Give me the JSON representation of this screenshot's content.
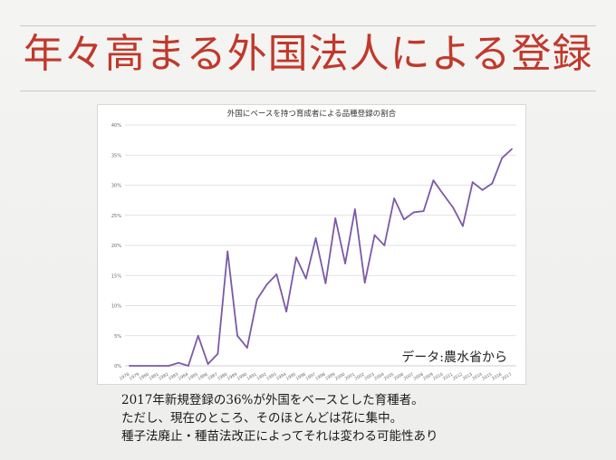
{
  "slide": {
    "title": "年々高まる外国法人による登録",
    "source": "データ:農水省から",
    "notes": [
      "2017年新規登録の36%が外国をベースとした育種者。",
      "ただし、現在のところ、そのほとんどは花に集中。",
      "種子法廃止・種苗法改正によってそれは変わる可能性あり"
    ]
  },
  "colors": {
    "title": "#c0392b",
    "line": "#7b5aa6",
    "grid": "#d9d9d9"
  },
  "chart_data": {
    "type": "line",
    "title": "外国にベースを持つ育成者による品種登録の割合",
    "xlabel": "",
    "ylabel": "",
    "ylim": [
      0,
      40
    ],
    "yticks": [
      "0%",
      "5%",
      "10%",
      "15%",
      "20%",
      "25%",
      "30%",
      "35%",
      "40%"
    ],
    "grid": true,
    "x": [
      "1978",
      "1979",
      "1980",
      "1981",
      "1982",
      "1983",
      "1984",
      "1985",
      "1986",
      "1987",
      "1988",
      "1989",
      "1990",
      "1991",
      "1992",
      "1993",
      "1994",
      "1995",
      "1996",
      "1997",
      "1998",
      "1999",
      "2000",
      "2001",
      "2002",
      "2003",
      "2004",
      "2005",
      "2006",
      "2007",
      "2008",
      "2009",
      "2010",
      "2011",
      "2012",
      "2013",
      "2014",
      "2015",
      "2016",
      "2017"
    ],
    "series": [
      {
        "values": [
          0,
          0,
          0,
          0,
          0,
          0.5,
          0,
          5.0,
          0.3,
          2.0,
          19.0,
          5.0,
          3.0,
          11.0,
          13.5,
          15.2,
          9.0,
          18.0,
          14.5,
          21.2,
          13.7,
          24.5,
          17.0,
          26.0,
          13.8,
          21.7,
          20.0,
          27.8,
          24.3,
          25.5,
          25.7,
          30.8,
          28.5,
          26.3,
          23.2,
          30.5,
          29.2,
          30.3,
          34.5,
          36.0
        ]
      }
    ]
  }
}
